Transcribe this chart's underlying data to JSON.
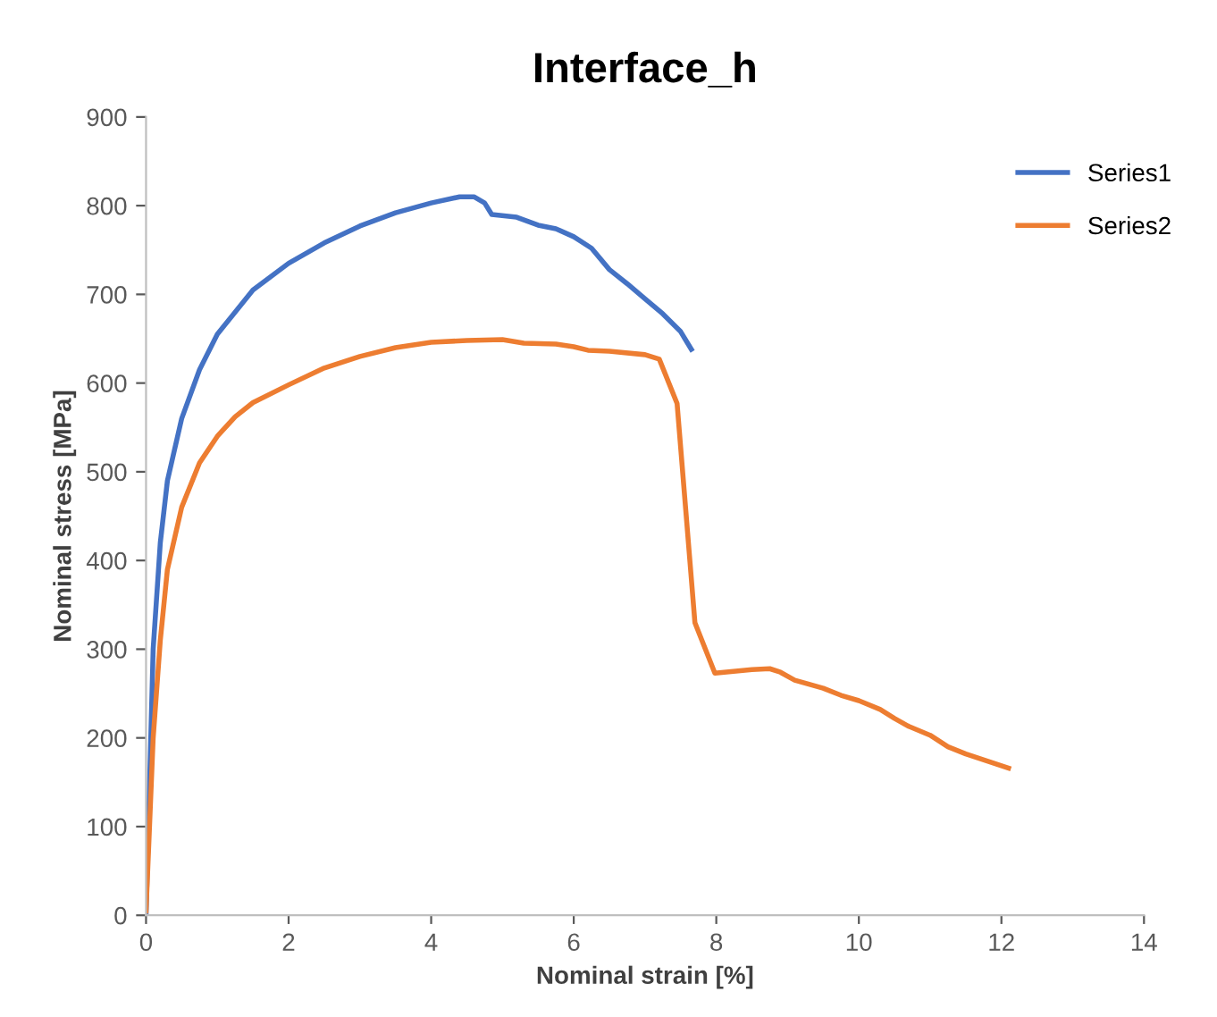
{
  "chart_data": {
    "type": "line",
    "title": "Interface_h",
    "xlabel": "Nominal strain [%]",
    "ylabel": "Nominal stress [MPa]",
    "xlim": [
      0,
      14
    ],
    "xticks": [
      0,
      2,
      4,
      6,
      8,
      10,
      12,
      14
    ],
    "ylim": [
      0,
      900
    ],
    "yticks": [
      0,
      100,
      200,
      300,
      400,
      500,
      600,
      700,
      800,
      900
    ],
    "grid": false,
    "legend": "top right",
    "marker": "none",
    "line_style": "solid",
    "series": [
      {
        "name": "Series1",
        "color": "#4472c4",
        "x": [
          0,
          0.05,
          0.1,
          0.2,
          0.3,
          0.5,
          0.75,
          1,
          1.5,
          2,
          2.5,
          3,
          3.5,
          4,
          4.4,
          4.6,
          4.75,
          4.85,
          5.2,
          5.5,
          5.75,
          6,
          6.25,
          6.5,
          6.75,
          7,
          7.25,
          7.5,
          7.65
        ],
        "values": [
          0,
          150,
          300,
          420,
          490,
          560,
          615,
          655,
          705,
          735,
          758,
          777,
          792,
          803,
          810,
          810,
          803,
          790,
          787,
          778,
          774,
          765,
          752,
          728,
          712,
          695,
          678,
          658,
          638
        ]
      },
      {
        "name": "Series2",
        "color": "#ed7d31",
        "x": [
          0,
          0.1,
          0.2,
          0.3,
          0.5,
          0.75,
          1,
          1.25,
          1.5,
          2,
          2.5,
          3,
          3.5,
          4,
          4.5,
          5,
          5.3,
          5.75,
          6,
          6.2,
          6.5,
          7,
          7.2,
          7.45,
          7.7,
          7.98,
          8.5,
          8.75,
          8.9,
          9.1,
          9.5,
          9.75,
          10,
          10.3,
          10.5,
          10.7,
          11,
          11.25,
          11.5,
          12.1
        ],
        "values": [
          5,
          200,
          310,
          390,
          460,
          510,
          540,
          562,
          578,
          598,
          617,
          630,
          640,
          646,
          648,
          649,
          645,
          644,
          641,
          637,
          636,
          632,
          627,
          577,
          330,
          273,
          277,
          278,
          274,
          265,
          256,
          248,
          242,
          232,
          222,
          213,
          203,
          190,
          182,
          166
        ]
      }
    ]
  }
}
